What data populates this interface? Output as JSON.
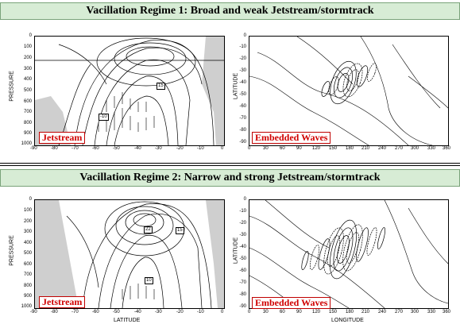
{
  "regime1": {
    "title": "Vacillation Regime 1: Broad and weak Jetstream/stormtrack",
    "left_label": "Jetstream",
    "right_label": "Embedded Waves",
    "left_box_labels": [
      "15",
      "-10"
    ]
  },
  "regime2": {
    "title": "Vacillation Regime 2: Narrow and strong Jetstream/stormtrack",
    "left_label": "Jetstream",
    "right_label": "Embedded Waves",
    "left_box_labels": [
      "22",
      "15",
      "10"
    ]
  },
  "axes": {
    "left_ylabel": "PRESSURE",
    "right_ylabel": "LATITUDE",
    "left_xlabel": "LATITUDE",
    "right_xlabel": "LONGITUDE",
    "pressure_ticks": [
      "0",
      "100",
      "200",
      "300",
      "400",
      "500",
      "600",
      "700",
      "800",
      "900",
      "1000"
    ],
    "latitude_x_ticks": [
      "-90",
      "-80",
      "-70",
      "-60",
      "-50",
      "-40",
      "-30",
      "-20",
      "-10",
      "0"
    ],
    "latitude_y_ticks": [
      "0",
      "-10",
      "-20",
      "-30",
      "-40",
      "-50",
      "-60",
      "-70",
      "-80",
      "-90"
    ],
    "longitude_ticks": [
      "0",
      "30",
      "60",
      "90",
      "120",
      "150",
      "180",
      "210",
      "240",
      "270",
      "300",
      "330",
      "360"
    ]
  }
}
